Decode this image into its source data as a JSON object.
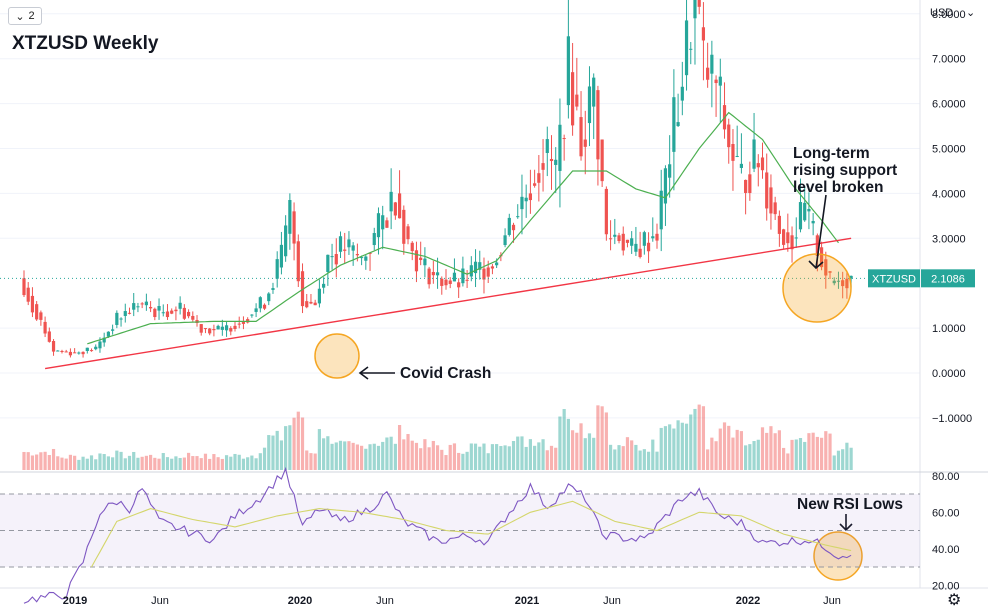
{
  "toolbar": {
    "interval": "2",
    "interval_icon": "chevron-down-icon"
  },
  "header": {
    "title": "XTZUSD Weekly"
  },
  "axis": {
    "currency": "USD"
  },
  "annotations": {
    "covid": "Covid Crash",
    "support": [
      "Long-term",
      "rising support",
      "level broken"
    ],
    "rsi": "New RSI Lows"
  },
  "price_tag": {
    "symbol": "XTZUSD",
    "price": "2.1086",
    "color": "#26a69a"
  },
  "colors": {
    "up": "#26a69a",
    "down": "#ef5350",
    "ma": "#4caf50",
    "trendline": "#f23645",
    "rsi": "#7e57c2",
    "rsi_ma": "#d4d66b",
    "highlight": "#f5a623"
  },
  "chart_data": [
    {
      "type": "candlestick",
      "y_ticks": [
        "8.0000",
        "7.0000",
        "6.0000",
        "5.0000",
        "4.0000",
        "3.0000",
        "1.0000",
        "0.0000",
        "−1.0000"
      ],
      "x_ticks": [
        "2019",
        "Jun",
        "2020",
        "Jun",
        "2021",
        "Jun",
        "2022",
        "Jun"
      ],
      "ylim": [
        -1.1,
        9.3
      ],
      "x_range": [
        "2018-11",
        "2022-06"
      ],
      "last_price": 2.1086,
      "anchors": [
        {
          "t": 0,
          "p": 1.9
        },
        {
          "t": 3,
          "p": 1.35
        },
        {
          "t": 7,
          "p": 0.5
        },
        {
          "t": 12,
          "p": 0.45
        },
        {
          "t": 17,
          "p": 0.55
        },
        {
          "t": 22,
          "p": 1.2
        },
        {
          "t": 27,
          "p": 1.55
        },
        {
          "t": 32,
          "p": 1.35
        },
        {
          "t": 37,
          "p": 1.45
        },
        {
          "t": 42,
          "p": 1.0
        },
        {
          "t": 47,
          "p": 0.95
        },
        {
          "t": 52,
          "p": 1.2
        },
        {
          "t": 57,
          "p": 1.6
        },
        {
          "t": 61,
          "p": 2.6
        },
        {
          "t": 63,
          "p": 3.6
        },
        {
          "t": 66,
          "p": 1.6
        },
        {
          "t": 69,
          "p": 1.55
        },
        {
          "t": 72,
          "p": 2.6
        },
        {
          "t": 76,
          "p": 2.8
        },
        {
          "t": 80,
          "p": 2.5
        },
        {
          "t": 84,
          "p": 3.2
        },
        {
          "t": 88,
          "p": 4.0
        },
        {
          "t": 91,
          "p": 2.9
        },
        {
          "t": 94,
          "p": 2.4
        },
        {
          "t": 98,
          "p": 2.1
        },
        {
          "t": 103,
          "p": 2.0
        },
        {
          "t": 107,
          "p": 2.3
        },
        {
          "t": 111,
          "p": 2.4
        },
        {
          "t": 115,
          "p": 3.3
        },
        {
          "t": 119,
          "p": 4.0
        },
        {
          "t": 123,
          "p": 4.9
        },
        {
          "t": 126,
          "p": 4.5
        },
        {
          "t": 129,
          "p": 6.7
        },
        {
          "t": 132,
          "p": 5.2
        },
        {
          "t": 135,
          "p": 6.3
        },
        {
          "t": 138,
          "p": 3.0
        },
        {
          "t": 141,
          "p": 3.1
        },
        {
          "t": 144,
          "p": 2.7
        },
        {
          "t": 147,
          "p": 2.9
        },
        {
          "t": 150,
          "p": 3.2
        },
        {
          "t": 154,
          "p": 5.5
        },
        {
          "t": 157,
          "p": 7.2
        },
        {
          "t": 159,
          "p": 8.6
        },
        {
          "t": 161,
          "p": 6.8
        },
        {
          "t": 164,
          "p": 6.4
        },
        {
          "t": 167,
          "p": 5.1
        },
        {
          "t": 170,
          "p": 4.3
        },
        {
          "t": 174,
          "p": 4.8
        },
        {
          "t": 177,
          "p": 3.8
        },
        {
          "t": 179,
          "p": 3.2
        },
        {
          "t": 182,
          "p": 3.0
        },
        {
          "t": 185,
          "p": 3.6
        },
        {
          "t": 188,
          "p": 2.8
        },
        {
          "t": 191,
          "p": 2.0
        },
        {
          "t": 194,
          "p": 2.1
        },
        {
          "t": 196,
          "p": 2.11
        }
      ],
      "trendline": [
        {
          "t": 5,
          "p": 0.1
        },
        {
          "t": 196,
          "p": 3.0
        }
      ],
      "moving_average_anchors": [
        {
          "t": 15,
          "p": 0.65
        },
        {
          "t": 30,
          "p": 1.1
        },
        {
          "t": 45,
          "p": 1.15
        },
        {
          "t": 55,
          "p": 1.15
        },
        {
          "t": 65,
          "p": 1.8
        },
        {
          "t": 75,
          "p": 2.4
        },
        {
          "t": 85,
          "p": 2.8
        },
        {
          "t": 95,
          "p": 2.6
        },
        {
          "t": 105,
          "p": 2.2
        },
        {
          "t": 112,
          "p": 2.5
        },
        {
          "t": 120,
          "p": 3.4
        },
        {
          "t": 130,
          "p": 4.5
        },
        {
          "t": 138,
          "p": 4.5
        },
        {
          "t": 145,
          "p": 4.1
        },
        {
          "t": 152,
          "p": 3.9
        },
        {
          "t": 160,
          "p": 5.0
        },
        {
          "t": 167,
          "p": 5.8
        },
        {
          "t": 175,
          "p": 5.2
        },
        {
          "t": 182,
          "p": 4.2
        },
        {
          "t": 189,
          "p": 3.4
        },
        {
          "t": 193,
          "p": 2.9
        }
      ]
    },
    {
      "type": "line",
      "name": "RSI",
      "y_ticks": [
        "80.00",
        "60.00",
        "40.00",
        "20.00"
      ],
      "ylim": [
        14,
        84
      ],
      "bands": [
        70,
        30
      ],
      "anchors": [
        {
          "t": 0,
          "p": 12
        },
        {
          "t": 10,
          "p": 15
        },
        {
          "t": 14,
          "p": 33
        },
        {
          "t": 18,
          "p": 60
        },
        {
          "t": 22,
          "p": 66
        },
        {
          "t": 25,
          "p": 62
        },
        {
          "t": 28,
          "p": 73
        },
        {
          "t": 32,
          "p": 55
        },
        {
          "t": 38,
          "p": 50
        },
        {
          "t": 45,
          "p": 45
        },
        {
          "t": 50,
          "p": 58
        },
        {
          "t": 56,
          "p": 68
        },
        {
          "t": 62,
          "p": 83
        },
        {
          "t": 66,
          "p": 52
        },
        {
          "t": 70,
          "p": 62
        },
        {
          "t": 75,
          "p": 55
        },
        {
          "t": 82,
          "p": 62
        },
        {
          "t": 86,
          "p": 70
        },
        {
          "t": 90,
          "p": 55
        },
        {
          "t": 98,
          "p": 44
        },
        {
          "t": 105,
          "p": 47
        },
        {
          "t": 110,
          "p": 44
        },
        {
          "t": 115,
          "p": 60
        },
        {
          "t": 120,
          "p": 74
        },
        {
          "t": 124,
          "p": 63
        },
        {
          "t": 129,
          "p": 74
        },
        {
          "t": 133,
          "p": 68
        },
        {
          "t": 137,
          "p": 48
        },
        {
          "t": 142,
          "p": 46
        },
        {
          "t": 147,
          "p": 45
        },
        {
          "t": 151,
          "p": 55
        },
        {
          "t": 156,
          "p": 68
        },
        {
          "t": 160,
          "p": 71
        },
        {
          "t": 165,
          "p": 58
        },
        {
          "t": 170,
          "p": 54
        },
        {
          "t": 175,
          "p": 43
        },
        {
          "t": 180,
          "p": 44
        },
        {
          "t": 186,
          "p": 45
        },
        {
          "t": 190,
          "p": 41
        },
        {
          "t": 193,
          "p": 36
        },
        {
          "t": 196,
          "p": 38
        }
      ],
      "ma_anchors": [
        {
          "t": 16,
          "p": 30
        },
        {
          "t": 22,
          "p": 55
        },
        {
          "t": 30,
          "p": 62
        },
        {
          "t": 40,
          "p": 56
        },
        {
          "t": 50,
          "p": 52
        },
        {
          "t": 60,
          "p": 58
        },
        {
          "t": 70,
          "p": 62
        },
        {
          "t": 80,
          "p": 60
        },
        {
          "t": 90,
          "p": 56
        },
        {
          "t": 100,
          "p": 50
        },
        {
          "t": 110,
          "p": 48
        },
        {
          "t": 120,
          "p": 60
        },
        {
          "t": 130,
          "p": 66
        },
        {
          "t": 140,
          "p": 55
        },
        {
          "t": 150,
          "p": 50
        },
        {
          "t": 160,
          "p": 60
        },
        {
          "t": 170,
          "p": 58
        },
        {
          "t": 180,
          "p": 48
        },
        {
          "t": 190,
          "p": 42
        },
        {
          "t": 196,
          "p": 39
        }
      ]
    }
  ]
}
